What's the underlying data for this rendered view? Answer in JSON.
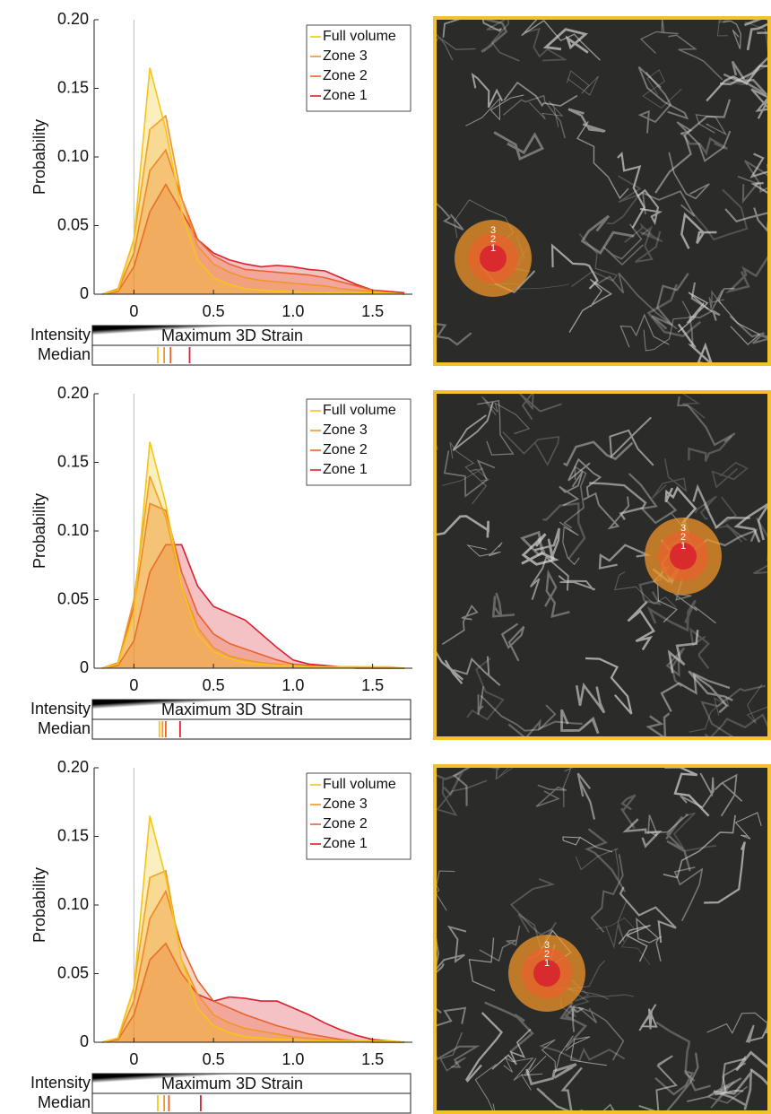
{
  "chart_data": [
    {
      "type": "area",
      "ylabel": "Probability",
      "legend": "upper right",
      "x": [
        -0.2,
        -0.1,
        0,
        0.1,
        0.2,
        0.3,
        0.4,
        0.5,
        0.6,
        0.7,
        0.8,
        0.9,
        1.0,
        1.1,
        1.2,
        1.3,
        1.4,
        1.5,
        1.6,
        1.7
      ],
      "series": [
        {
          "name": "Full volume",
          "color": "#f5c518",
          "median": 0.15,
          "values": [
            0,
            0.003,
            0.04,
            0.165,
            0.12,
            0.06,
            0.025,
            0.012,
            0.007,
            0.004,
            0.003,
            0.002,
            0.002,
            0.001,
            0.001,
            0.001,
            0.001,
            0.001,
            0.001,
            0
          ]
        },
        {
          "name": "Zone 3",
          "color": "#f0962a",
          "median": 0.19,
          "values": [
            0,
            0.004,
            0.04,
            0.12,
            0.13,
            0.07,
            0.035,
            0.022,
            0.016,
            0.012,
            0.01,
            0.009,
            0.008,
            0.007,
            0.006,
            0.004,
            0.003,
            0.002,
            0.001,
            0
          ]
        },
        {
          "name": "Zone 2",
          "color": "#e8632e",
          "median": 0.23,
          "values": [
            0,
            0.003,
            0.03,
            0.09,
            0.105,
            0.07,
            0.04,
            0.028,
            0.022,
            0.018,
            0.017,
            0.016,
            0.015,
            0.014,
            0.012,
            0.009,
            0.006,
            0.003,
            0.001,
            0
          ]
        },
        {
          "name": "Zone 1",
          "color": "#d8202e",
          "median": 0.35,
          "values": [
            0,
            0.002,
            0.02,
            0.06,
            0.08,
            0.06,
            0.04,
            0.03,
            0.025,
            0.022,
            0.02,
            0.021,
            0.02,
            0.018,
            0.017,
            0.012,
            0.007,
            0.003,
            0.002,
            0.001
          ]
        }
      ],
      "xlim": [
        -0.25,
        1.75
      ],
      "ylim": [
        0,
        0.2
      ],
      "xticks": [
        0,
        0.5,
        {
          "value": 1,
          "label": "1.0"
        },
        1.5
      ],
      "yticks": [
        0,
        0.05,
        {
          "value": 0.1,
          "label": "0.10"
        },
        0.15,
        {
          "value": 0.2,
          "label": "0.20"
        }
      ],
      "intensity_label": "Intensity",
      "colorbar_title": "Maximum 3D Strain",
      "median_label": "Median",
      "zone_labels": [
        "3",
        "2",
        "1"
      ]
    },
    {
      "type": "area",
      "ylabel": "Probability",
      "legend": "upper right",
      "x": [
        -0.2,
        -0.1,
        0,
        0.1,
        0.2,
        0.3,
        0.4,
        0.5,
        0.6,
        0.7,
        0.8,
        0.9,
        1.0,
        1.1,
        1.2,
        1.3,
        1.4,
        1.5,
        1.6,
        1.7
      ],
      "series": [
        {
          "name": "Full volume",
          "color": "#f5c518",
          "median": 0.16,
          "values": [
            0,
            0.003,
            0.04,
            0.165,
            0.12,
            0.06,
            0.025,
            0.012,
            0.007,
            0.004,
            0.003,
            0.002,
            0.002,
            0.001,
            0.001,
            0.001,
            0.001,
            0.001,
            0.001,
            0
          ]
        },
        {
          "name": "Zone 3",
          "color": "#f0962a",
          "median": 0.18,
          "values": [
            0,
            0.004,
            0.05,
            0.14,
            0.11,
            0.06,
            0.03,
            0.015,
            0.009,
            0.006,
            0.004,
            0.003,
            0.002,
            0.001,
            0.001,
            0.001,
            0,
            0,
            0,
            0
          ]
        },
        {
          "name": "Zone 2",
          "color": "#e8632e",
          "median": 0.2,
          "values": [
            0,
            0.004,
            0.045,
            0.12,
            0.115,
            0.07,
            0.04,
            0.025,
            0.018,
            0.014,
            0.01,
            0.006,
            0.003,
            0.002,
            0.001,
            0.001,
            0,
            0,
            0,
            0
          ]
        },
        {
          "name": "Zone 1",
          "color": "#d8202e",
          "median": 0.29,
          "values": [
            0,
            0.002,
            0.02,
            0.07,
            0.09,
            0.09,
            0.06,
            0.045,
            0.04,
            0.035,
            0.025,
            0.015,
            0.006,
            0.003,
            0.002,
            0.001,
            0.001,
            0,
            0,
            0
          ]
        }
      ],
      "xlim": [
        -0.25,
        1.75
      ],
      "ylim": [
        0,
        0.2
      ],
      "xticks": [
        0,
        0.5,
        {
          "value": 1,
          "label": "1.0"
        },
        1.5
      ],
      "yticks": [
        0,
        0.05,
        {
          "value": 0.1,
          "label": "0.10"
        },
        0.15,
        {
          "value": 0.2,
          "label": "0.20"
        }
      ],
      "intensity_label": "Intensity",
      "colorbar_title": "Maximum 3D Strain",
      "median_label": "Median",
      "zone_labels": [
        "3",
        "2",
        "1"
      ]
    },
    {
      "type": "area",
      "ylabel": "Probability",
      "legend": "upper right",
      "x": [
        -0.2,
        -0.1,
        0,
        0.1,
        0.2,
        0.3,
        0.4,
        0.5,
        0.6,
        0.7,
        0.8,
        0.9,
        1.0,
        1.1,
        1.2,
        1.3,
        1.4,
        1.5,
        1.6,
        1.7
      ],
      "series": [
        {
          "name": "Full volume",
          "color": "#f5c518",
          "median": 0.15,
          "values": [
            0,
            0.003,
            0.04,
            0.165,
            0.12,
            0.06,
            0.025,
            0.012,
            0.007,
            0.004,
            0.003,
            0.002,
            0.002,
            0.001,
            0.001,
            0.001,
            0.001,
            0.001,
            0.001,
            0
          ]
        },
        {
          "name": "Zone 3",
          "color": "#f0962a",
          "median": 0.19,
          "values": [
            0,
            0.003,
            0.04,
            0.12,
            0.125,
            0.06,
            0.035,
            0.02,
            0.014,
            0.01,
            0.008,
            0.006,
            0.004,
            0.003,
            0.002,
            0.001,
            0.001,
            0,
            0,
            0
          ]
        },
        {
          "name": "Zone 2",
          "color": "#e8632e",
          "median": 0.22,
          "values": [
            0,
            0.003,
            0.03,
            0.09,
            0.11,
            0.07,
            0.045,
            0.03,
            0.025,
            0.02,
            0.016,
            0.012,
            0.009,
            0.006,
            0.004,
            0.002,
            0.001,
            0,
            0,
            0
          ]
        },
        {
          "name": "Zone 1",
          "color": "#d8202e",
          "median": 0.42,
          "values": [
            0,
            0.002,
            0.02,
            0.06,
            0.072,
            0.05,
            0.035,
            0.03,
            0.033,
            0.032,
            0.03,
            0.03,
            0.025,
            0.02,
            0.014,
            0.009,
            0.005,
            0.002,
            0.001,
            0
          ]
        }
      ],
      "xlim": [
        -0.25,
        1.75
      ],
      "ylim": [
        0,
        0.2
      ],
      "xticks": [
        0,
        0.5,
        {
          "value": 1,
          "label": "1.0"
        },
        1.5
      ],
      "yticks": [
        0,
        0.05,
        {
          "value": 0.1,
          "label": "0.10"
        },
        0.15,
        {
          "value": 0.2,
          "label": "0.20"
        }
      ],
      "intensity_label": "Intensity",
      "colorbar_title": "Maximum 3D Strain",
      "median_label": "Median",
      "zone_labels": [
        "3",
        "2",
        "1"
      ]
    }
  ]
}
